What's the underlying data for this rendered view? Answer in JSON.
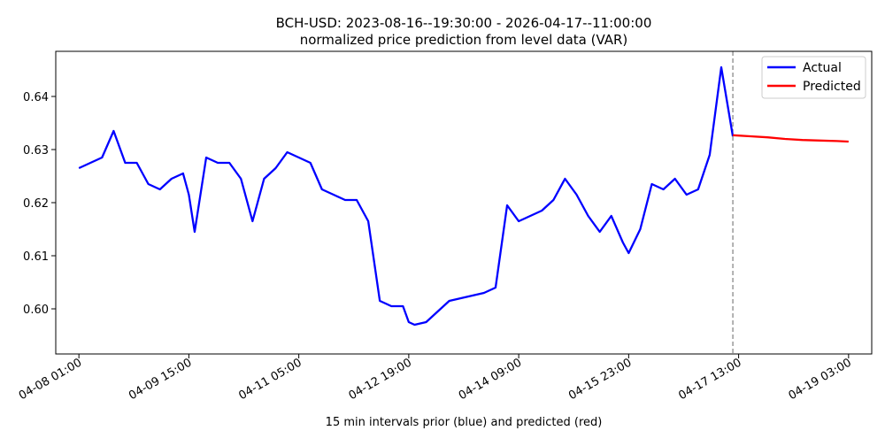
{
  "chart_data": {
    "type": "line",
    "title": "BCH-USD: 2023-08-16--19:30:00 - 2026-04-17--11:00:00",
    "subtitle": "normalized price prediction from level data (VAR)",
    "xlabel": "15 min intervals prior (blue) and predicted (red)",
    "ylabel": "",
    "x_ticks": [
      "04-08 01:00",
      "04-09 15:00",
      "04-11 05:00",
      "04-12 19:00",
      "04-14 09:00",
      "04-15 23:00",
      "04-17 13:00",
      "04-19 03:00"
    ],
    "y_ticks": [
      "0.60",
      "0.61",
      "0.62",
      "0.63",
      "0.64"
    ],
    "ylim": [
      0.5915,
      0.6485
    ],
    "xlim": [
      "04-07 17:00",
      "04-19 11:00"
    ],
    "grid": false,
    "legend_position": "top-right",
    "forecast_start": "04-17 11:00",
    "series": [
      {
        "name": "Actual",
        "color": "#0000ff",
        "x": [
          "04-08 01:00",
          "04-08 05:00",
          "04-08 09:00",
          "04-08 13:00",
          "04-08 17:00",
          "04-08 21:00",
          "04-09 01:00",
          "04-09 05:00",
          "04-09 09:00",
          "04-09 13:00",
          "04-09 15:00",
          "04-09 17:00",
          "04-09 21:00",
          "04-10 01:00",
          "04-10 05:00",
          "04-10 09:00",
          "04-10 13:00",
          "04-10 17:00",
          "04-10 21:00",
          "04-11 01:00",
          "04-11 05:00",
          "04-11 09:00",
          "04-11 13:00",
          "04-11 17:00",
          "04-11 21:00",
          "04-12 01:00",
          "04-12 05:00",
          "04-12 09:00",
          "04-12 13:00",
          "04-12 17:00",
          "04-12 19:00",
          "04-12 21:00",
          "04-13 01:00",
          "04-13 05:00",
          "04-13 09:00",
          "04-13 13:00",
          "04-13 17:00",
          "04-13 21:00",
          "04-14 01:00",
          "04-14 05:00",
          "04-14 09:00",
          "04-14 13:00",
          "04-14 17:00",
          "04-14 21:00",
          "04-15 01:00",
          "04-15 05:00",
          "04-15 09:00",
          "04-15 13:00",
          "04-15 17:00",
          "04-15 21:00",
          "04-15 23:00",
          "04-16 03:00",
          "04-16 07:00",
          "04-16 11:00",
          "04-16 15:00",
          "04-16 19:00",
          "04-16 23:00",
          "04-17 03:00",
          "04-17 07:00",
          "04-17 11:00"
        ],
        "values": [
          0.6265,
          0.6275,
          0.6285,
          0.6335,
          0.6275,
          0.6275,
          0.6235,
          0.6225,
          0.6245,
          0.6255,
          0.6215,
          0.6145,
          0.6285,
          0.6275,
          0.6275,
          0.6245,
          0.6165,
          0.6245,
          0.6265,
          0.6295,
          0.6285,
          0.6275,
          0.6225,
          0.6215,
          0.6205,
          0.6205,
          0.6165,
          0.6015,
          0.6005,
          0.6005,
          0.5975,
          0.597,
          0.5975,
          0.5995,
          0.6015,
          0.602,
          0.6025,
          0.603,
          0.604,
          0.6195,
          0.6165,
          0.6175,
          0.6185,
          0.6205,
          0.6245,
          0.6215,
          0.6175,
          0.6145,
          0.6175,
          0.6125,
          0.6105,
          0.615,
          0.6235,
          0.6225,
          0.6245,
          0.6215,
          0.6225,
          0.629,
          0.6455,
          0.6325
        ]
      },
      {
        "name": "Predicted",
        "color": "#ff0000",
        "x": [
          "04-17 11:00",
          "04-17 17:00",
          "04-17 23:00",
          "04-18 05:00",
          "04-18 11:00",
          "04-18 17:00",
          "04-18 23:00",
          "04-19 03:00"
        ],
        "values": [
          0.6327,
          0.6325,
          0.6323,
          0.632,
          0.6318,
          0.6317,
          0.6316,
          0.6315
        ]
      }
    ]
  }
}
